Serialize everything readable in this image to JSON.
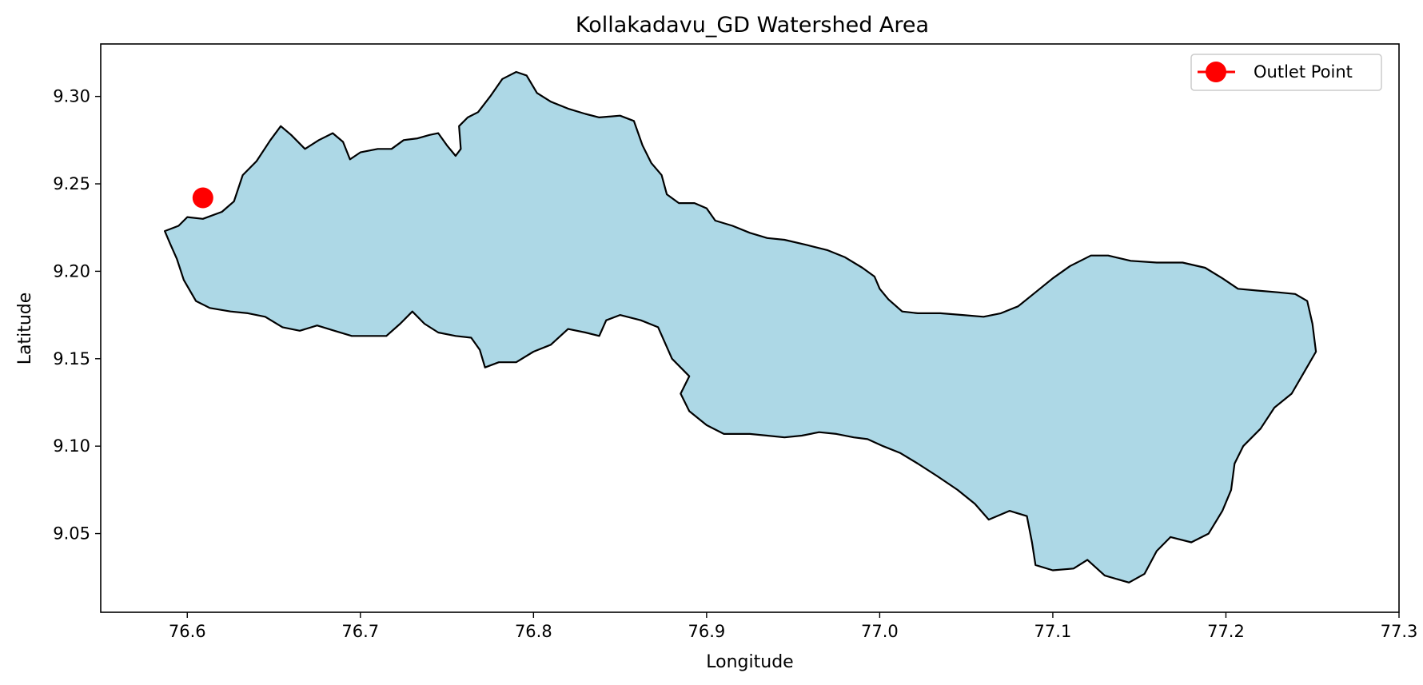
{
  "chart_data": {
    "type": "map",
    "title": "Kollakadavu_GD Watershed Area",
    "xlabel": "Longitude",
    "ylabel": "Latitude",
    "xlim": [
      76.55,
      77.3
    ],
    "ylim": [
      9.005,
      9.33
    ],
    "x_ticks": [
      76.6,
      76.7,
      76.8,
      76.9,
      77.0,
      77.1,
      77.2,
      77.3
    ],
    "x_tick_labels": [
      "76.6",
      "76.7",
      "76.8",
      "76.9",
      "77.0",
      "77.1",
      "77.2",
      "77.3"
    ],
    "y_ticks": [
      9.05,
      9.1,
      9.15,
      9.2,
      9.25,
      9.3
    ],
    "y_tick_labels": [
      "9.05",
      "9.10",
      "9.15",
      "9.20",
      "9.25",
      "9.30"
    ],
    "grid": false,
    "legend": {
      "placement": "top-right",
      "entries": [
        "Outlet Point"
      ]
    },
    "watershed": {
      "fill_color": "#add8e6",
      "edge_color": "#000000",
      "boundary": [
        [
          76.587,
          9.223
        ],
        [
          76.595,
          9.226
        ],
        [
          76.6,
          9.231
        ],
        [
          76.609,
          9.23
        ],
        [
          76.62,
          9.234
        ],
        [
          76.627,
          9.24
        ],
        [
          76.632,
          9.255
        ],
        [
          76.64,
          9.263
        ],
        [
          76.648,
          9.275
        ],
        [
          76.654,
          9.283
        ],
        [
          76.66,
          9.278
        ],
        [
          76.668,
          9.27
        ],
        [
          76.676,
          9.275
        ],
        [
          76.684,
          9.279
        ],
        [
          76.69,
          9.274
        ],
        [
          76.694,
          9.264
        ],
        [
          76.7,
          9.268
        ],
        [
          76.71,
          9.27
        ],
        [
          76.718,
          9.27
        ],
        [
          76.725,
          9.275
        ],
        [
          76.733,
          9.276
        ],
        [
          76.74,
          9.278
        ],
        [
          76.745,
          9.279
        ],
        [
          76.75,
          9.272
        ],
        [
          76.755,
          9.266
        ],
        [
          76.758,
          9.27
        ],
        [
          76.757,
          9.283
        ],
        [
          76.762,
          9.288
        ],
        [
          76.768,
          9.291
        ],
        [
          76.775,
          9.3
        ],
        [
          76.782,
          9.31
        ],
        [
          76.79,
          9.314
        ],
        [
          76.796,
          9.312
        ],
        [
          76.802,
          9.302
        ],
        [
          76.81,
          9.297
        ],
        [
          76.82,
          9.293
        ],
        [
          76.83,
          9.29
        ],
        [
          76.838,
          9.288
        ],
        [
          76.85,
          9.289
        ],
        [
          76.858,
          9.286
        ],
        [
          76.863,
          9.272
        ],
        [
          76.868,
          9.262
        ],
        [
          76.874,
          9.255
        ],
        [
          76.877,
          9.244
        ],
        [
          76.884,
          9.239
        ],
        [
          76.893,
          9.239
        ],
        [
          76.9,
          9.236
        ],
        [
          76.905,
          9.229
        ],
        [
          76.915,
          9.226
        ],
        [
          76.925,
          9.222
        ],
        [
          76.935,
          9.219
        ],
        [
          76.945,
          9.218
        ],
        [
          76.958,
          9.215
        ],
        [
          76.97,
          9.212
        ],
        [
          76.98,
          9.208
        ],
        [
          76.99,
          9.202
        ],
        [
          76.997,
          9.197
        ],
        [
          77.0,
          9.19
        ],
        [
          77.005,
          9.184
        ],
        [
          77.013,
          9.177
        ],
        [
          77.022,
          9.176
        ],
        [
          77.035,
          9.176
        ],
        [
          77.048,
          9.175
        ],
        [
          77.06,
          9.174
        ],
        [
          77.07,
          9.176
        ],
        [
          77.08,
          9.18
        ],
        [
          77.09,
          9.188
        ],
        [
          77.1,
          9.196
        ],
        [
          77.11,
          9.203
        ],
        [
          77.122,
          9.209
        ],
        [
          77.132,
          9.209
        ],
        [
          77.145,
          9.206
        ],
        [
          77.16,
          9.205
        ],
        [
          77.175,
          9.205
        ],
        [
          77.188,
          9.202
        ],
        [
          77.198,
          9.196
        ],
        [
          77.207,
          9.19
        ],
        [
          77.218,
          9.189
        ],
        [
          77.23,
          9.188
        ],
        [
          77.24,
          9.187
        ],
        [
          77.247,
          9.183
        ],
        [
          77.25,
          9.17
        ],
        [
          77.252,
          9.154
        ],
        [
          77.245,
          9.142
        ],
        [
          77.238,
          9.13
        ],
        [
          77.228,
          9.122
        ],
        [
          77.22,
          9.11
        ],
        [
          77.21,
          9.1
        ],
        [
          77.205,
          9.09
        ],
        [
          77.203,
          9.075
        ],
        [
          77.198,
          9.063
        ],
        [
          77.19,
          9.05
        ],
        [
          77.18,
          9.045
        ],
        [
          77.168,
          9.048
        ],
        [
          77.16,
          9.04
        ],
        [
          77.153,
          9.027
        ],
        [
          77.144,
          9.022
        ],
        [
          77.13,
          9.026
        ],
        [
          77.12,
          9.035
        ],
        [
          77.112,
          9.03
        ],
        [
          77.1,
          9.029
        ],
        [
          77.09,
          9.032
        ],
        [
          77.088,
          9.045
        ],
        [
          77.085,
          9.06
        ],
        [
          77.075,
          9.063
        ],
        [
          77.063,
          9.058
        ],
        [
          77.055,
          9.067
        ],
        [
          77.045,
          9.075
        ],
        [
          77.033,
          9.083
        ],
        [
          77.022,
          9.09
        ],
        [
          77.012,
          9.096
        ],
        [
          77.002,
          9.1
        ],
        [
          76.993,
          9.104
        ],
        [
          76.985,
          9.105
        ],
        [
          76.975,
          9.107
        ],
        [
          76.965,
          9.108
        ],
        [
          76.955,
          9.106
        ],
        [
          76.945,
          9.105
        ],
        [
          76.935,
          9.106
        ],
        [
          76.925,
          9.107
        ],
        [
          76.91,
          9.107
        ],
        [
          76.9,
          9.112
        ],
        [
          76.89,
          9.12
        ],
        [
          76.885,
          9.13
        ],
        [
          76.89,
          9.14
        ],
        [
          76.88,
          9.15
        ],
        [
          76.872,
          9.168
        ],
        [
          76.862,
          9.172
        ],
        [
          76.85,
          9.175
        ],
        [
          76.842,
          9.172
        ],
        [
          76.838,
          9.163
        ],
        [
          76.83,
          9.165
        ],
        [
          76.82,
          9.167
        ],
        [
          76.81,
          9.158
        ],
        [
          76.8,
          9.154
        ],
        [
          76.79,
          9.148
        ],
        [
          76.78,
          9.148
        ],
        [
          76.772,
          9.145
        ],
        [
          76.769,
          9.155
        ],
        [
          76.764,
          9.162
        ],
        [
          76.755,
          9.163
        ],
        [
          76.745,
          9.165
        ],
        [
          76.737,
          9.17
        ],
        [
          76.73,
          9.177
        ],
        [
          76.723,
          9.17
        ],
        [
          76.715,
          9.163
        ],
        [
          76.705,
          9.163
        ],
        [
          76.695,
          9.163
        ],
        [
          76.685,
          9.166
        ],
        [
          76.675,
          9.169
        ],
        [
          76.665,
          9.166
        ],
        [
          76.655,
          9.168
        ],
        [
          76.645,
          9.174
        ],
        [
          76.635,
          9.176
        ],
        [
          76.625,
          9.177
        ],
        [
          76.613,
          9.179
        ],
        [
          76.605,
          9.183
        ],
        [
          76.598,
          9.195
        ],
        [
          76.594,
          9.207
        ],
        [
          76.59,
          9.216
        ]
      ]
    },
    "outlet_point": {
      "name": "Outlet Point",
      "lon": 76.609,
      "lat": 9.242,
      "color": "#ff0000"
    }
  }
}
